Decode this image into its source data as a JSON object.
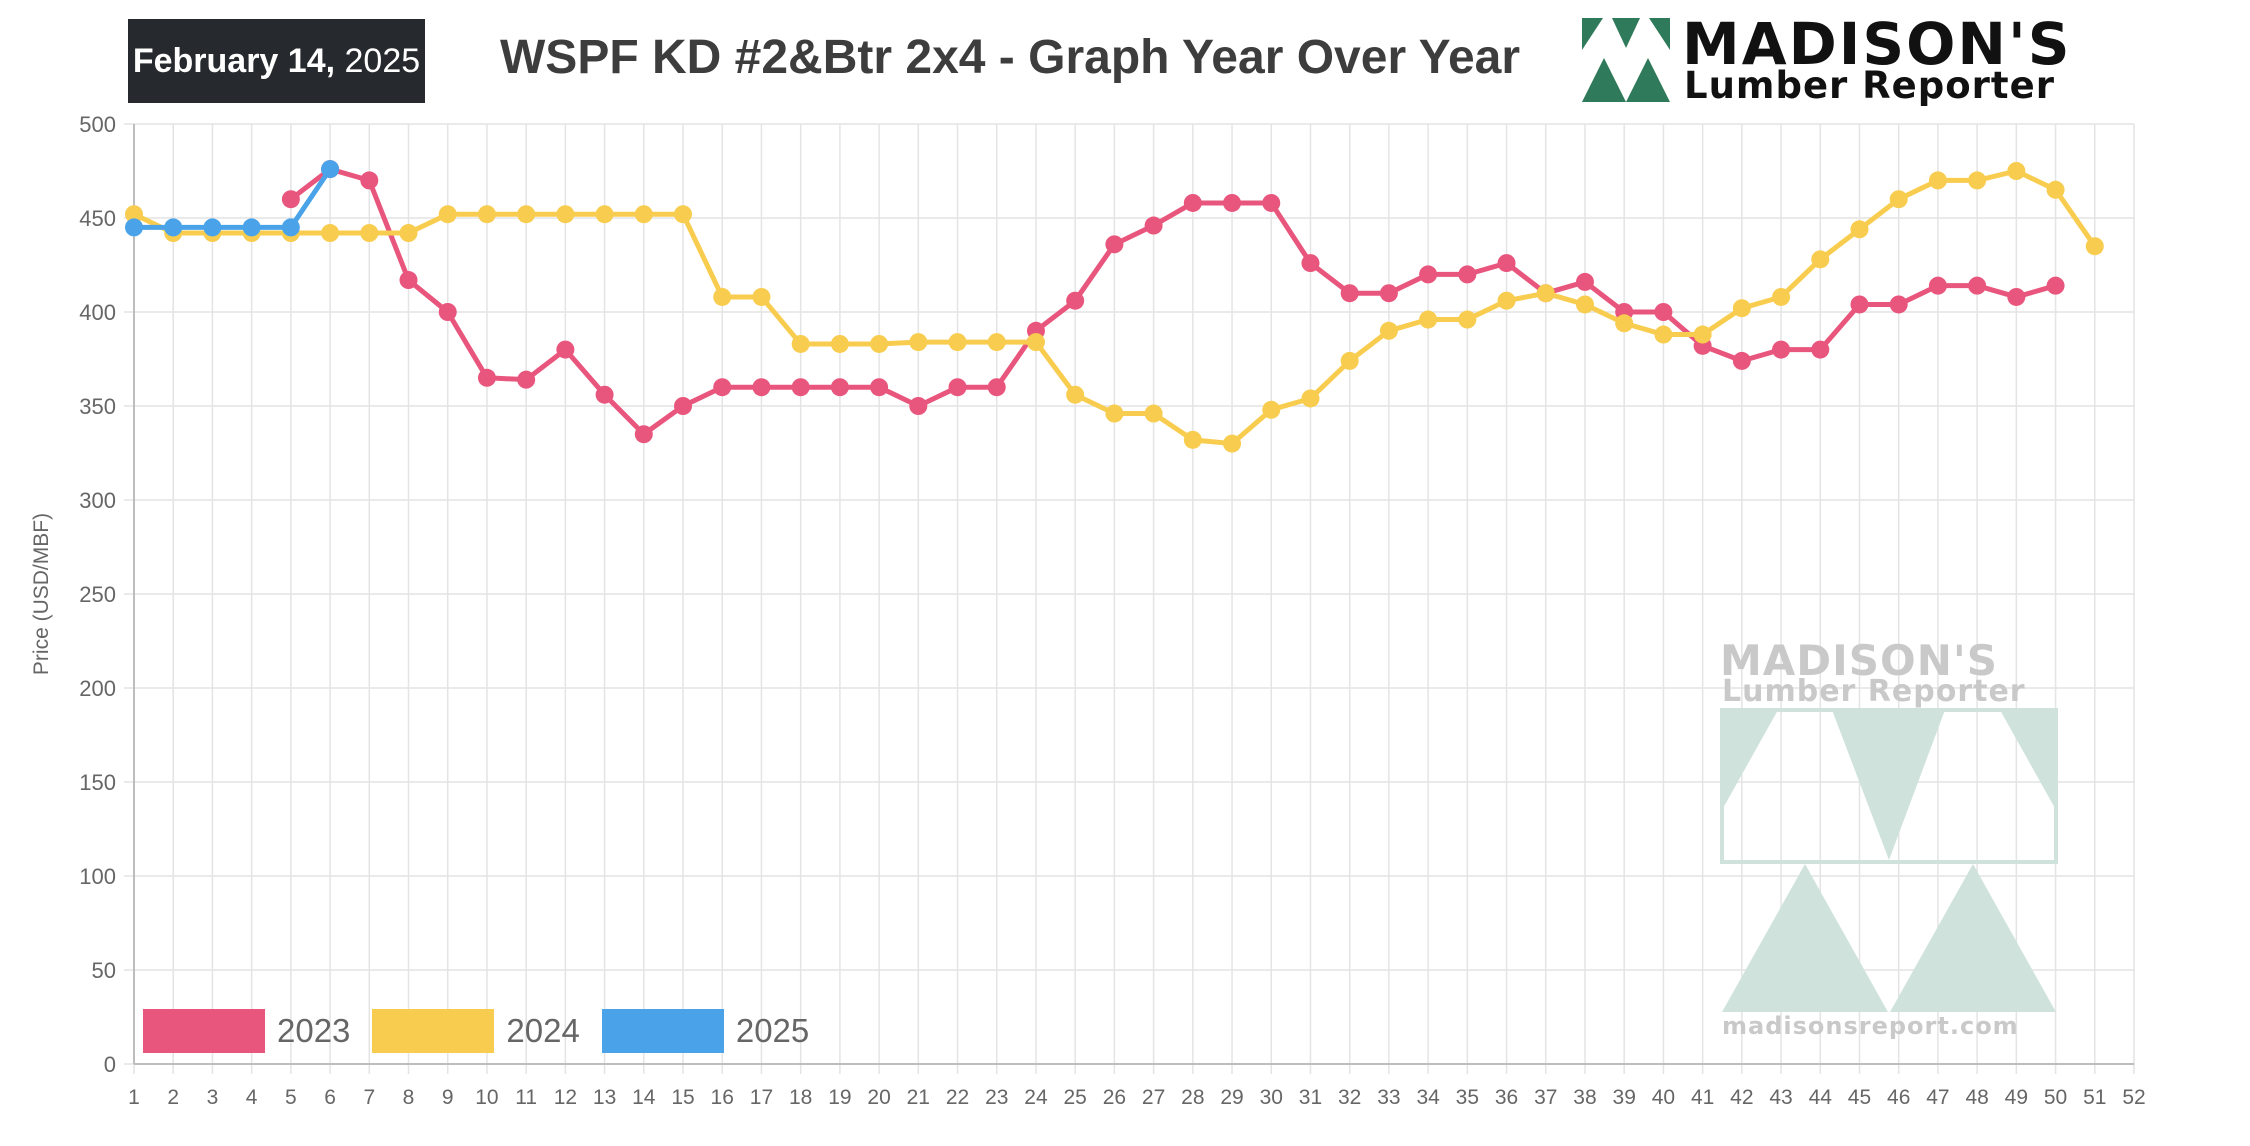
{
  "header": {
    "date_bold": "February 14,",
    "date_year": " 2025",
    "title": "WSPF KD #2&Btr 2x4 - Graph Year Over Year"
  },
  "logo": {
    "line1": "MADISON'S",
    "line2": "Lumber Reporter"
  },
  "watermark": {
    "line1": "MADISON'S",
    "line2": "Lumber Reporter",
    "url": "madisonsreport.com"
  },
  "colors": {
    "series_2023": "#e9567d",
    "series_2024": "#f8cd4f",
    "series_2025": "#4aa3e8",
    "logo_green": "#2e7a5a",
    "watermark_green": "#cfe3dc",
    "grid": "#e4e4e4"
  },
  "chart_data": {
    "type": "line",
    "title": "WSPF KD #2&Btr 2x4 - Graph Year Over Year",
    "xlabel": "",
    "ylabel": "Price  (USD/MBF)",
    "xlim": [
      1,
      52
    ],
    "ylim": [
      0,
      500
    ],
    "x_ticks": [
      1,
      2,
      3,
      4,
      5,
      6,
      7,
      8,
      9,
      10,
      11,
      12,
      13,
      14,
      15,
      16,
      17,
      18,
      19,
      20,
      21,
      22,
      23,
      24,
      25,
      26,
      27,
      28,
      29,
      30,
      31,
      32,
      33,
      34,
      35,
      36,
      37,
      38,
      39,
      40,
      41,
      42,
      43,
      44,
      45,
      46,
      47,
      48,
      49,
      50,
      51,
      52
    ],
    "y_ticks": [
      0,
      50,
      100,
      150,
      200,
      250,
      300,
      350,
      400,
      450,
      500
    ],
    "grid": true,
    "legend_position": "bottom-left",
    "series": [
      {
        "name": "2023",
        "x": [
          5,
          6,
          7,
          8,
          9,
          10,
          11,
          12,
          13,
          14,
          15,
          16,
          17,
          18,
          19,
          20,
          21,
          22,
          23,
          24,
          25,
          26,
          27,
          28,
          29,
          30,
          31,
          32,
          33,
          34,
          35,
          36,
          37,
          38,
          39,
          40,
          41,
          42,
          43,
          44,
          45,
          46,
          47,
          48,
          49,
          50
        ],
        "values": [
          460,
          476,
          470,
          417,
          400,
          365,
          364,
          380,
          356,
          335,
          350,
          360,
          360,
          360,
          360,
          360,
          350,
          360,
          360,
          390,
          406,
          436,
          446,
          458,
          458,
          458,
          426,
          410,
          410,
          420,
          420,
          426,
          410,
          416,
          400,
          400,
          382,
          374,
          380,
          380,
          404,
          404,
          414,
          414,
          408,
          414
        ]
      },
      {
        "name": "2024",
        "x": [
          1,
          2,
          3,
          4,
          5,
          6,
          7,
          8,
          9,
          10,
          11,
          12,
          13,
          14,
          15,
          16,
          17,
          18,
          19,
          20,
          21,
          22,
          23,
          24,
          25,
          26,
          27,
          28,
          29,
          30,
          31,
          32,
          33,
          34,
          35,
          36,
          37,
          38,
          39,
          40,
          41,
          42,
          43,
          44,
          45,
          46,
          47,
          48,
          49,
          50,
          51
        ],
        "values": [
          452,
          442,
          442,
          442,
          442,
          442,
          442,
          442,
          452,
          452,
          452,
          452,
          452,
          452,
          452,
          408,
          408,
          383,
          383,
          383,
          384,
          384,
          384,
          384,
          356,
          346,
          346,
          332,
          330,
          348,
          354,
          374,
          390,
          396,
          396,
          406,
          410,
          404,
          394,
          388,
          388,
          402,
          408,
          428,
          444,
          460,
          470,
          470,
          475,
          465,
          435
        ]
      },
      {
        "name": "2025",
        "x": [
          1,
          2,
          3,
          4,
          5,
          6
        ],
        "values": [
          445,
          445,
          445,
          445,
          445,
          476
        ]
      }
    ]
  }
}
